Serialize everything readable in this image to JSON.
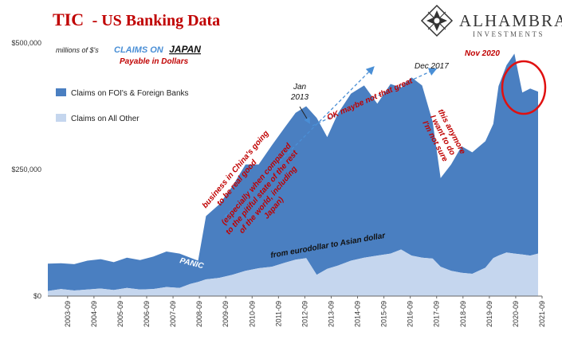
{
  "header": {
    "title_tic": "TIC",
    "title_rest": "- US Banking Data"
  },
  "logo": {
    "name": "ALHAMBRA",
    "subtitle": "INVESTMENTS",
    "icon": "star-diamond-logo-icon"
  },
  "colors": {
    "dark_series": "#4a7fc1",
    "light_series": "#c5d6ee",
    "annotation_red": "#c00000",
    "header_blue": "#4a8fd6",
    "arrow_blue": "#4a8fd6"
  },
  "chart_data": {
    "type": "area",
    "stacked": true,
    "units": "millions of $'s",
    "header_claims": "CLAIMS ON",
    "header_country": "JAPAN",
    "header_payable": "Payable in Dollars",
    "y_ticks": [
      "$0",
      "$250,000",
      "$500,000"
    ],
    "ylim": [
      0,
      500000
    ],
    "x_ticks": [
      "2003-09",
      "2004-09",
      "2005-09",
      "2006-09",
      "2007-09",
      "2008-09",
      "2009-09",
      "2010-09",
      "2011-09",
      "2012-09",
      "2013-09",
      "2014-09",
      "2015-09",
      "2016-09",
      "2017-09",
      "2018-09",
      "2019-09",
      "2020-09",
      "2021-09"
    ],
    "xlim": [
      2003.0,
      2021.75
    ],
    "legend": [
      "Claims on FOI's & Foreign Banks",
      "Claims on All Other"
    ],
    "series": [
      {
        "name": "Claims on All Other",
        "x": [
          2003.0,
          2003.5,
          2004.0,
          2004.5,
          2005.0,
          2005.5,
          2006.0,
          2006.5,
          2007.0,
          2007.5,
          2008.0,
          2008.4,
          2008.7,
          2009.0,
          2009.5,
          2010.0,
          2010.5,
          2011.0,
          2011.5,
          2012.0,
          2012.4,
          2012.8,
          2013.2,
          2013.6,
          2014.0,
          2014.5,
          2015.0,
          2015.5,
          2016.0,
          2016.4,
          2016.8,
          2017.2,
          2017.6,
          2017.9,
          2018.3,
          2018.7,
          2019.1,
          2019.6,
          2019.9,
          2020.1,
          2020.4,
          2020.7,
          2021.0,
          2021.3,
          2021.6
        ],
        "values": [
          10000,
          14000,
          11000,
          13000,
          15000,
          12000,
          16000,
          13000,
          14000,
          18000,
          16000,
          24000,
          28000,
          33000,
          36000,
          42000,
          50000,
          55000,
          58000,
          66000,
          72000,
          75000,
          42000,
          54000,
          60000,
          70000,
          76000,
          80000,
          84000,
          92000,
          80000,
          76000,
          74000,
          58000,
          50000,
          46000,
          44000,
          56000,
          75000,
          80000,
          86000,
          84000,
          82000,
          80000,
          84000
        ]
      },
      {
        "name": "Claims on FOI's & Foreign Banks",
        "x": [
          2003.0,
          2003.5,
          2004.0,
          2004.5,
          2005.0,
          2005.5,
          2006.0,
          2006.5,
          2007.0,
          2007.5,
          2008.0,
          2008.4,
          2008.7,
          2009.0,
          2009.5,
          2010.0,
          2010.5,
          2011.0,
          2011.5,
          2012.0,
          2012.4,
          2012.8,
          2013.2,
          2013.6,
          2014.0,
          2014.5,
          2015.0,
          2015.5,
          2016.0,
          2016.4,
          2016.8,
          2017.2,
          2017.6,
          2017.9,
          2018.3,
          2018.7,
          2019.1,
          2019.6,
          2019.9,
          2020.1,
          2020.4,
          2020.7,
          2021.0,
          2021.3,
          2021.6
        ],
        "values": [
          54000,
          51000,
          52000,
          57000,
          58000,
          55000,
          60000,
          58000,
          64000,
          70000,
          68000,
          52000,
          42000,
          125000,
          145000,
          175000,
          210000,
          205000,
          240000,
          268000,
          290000,
          300000,
          310000,
          260000,
          300000,
          330000,
          340000,
          300000,
          335000,
          320000,
          352000,
          340000,
          270000,
          175000,
          210000,
          250000,
          240000,
          250000,
          265000,
          335000,
          370000,
          395000,
          320000,
          330000,
          320000
        ]
      }
    ],
    "annotations": {
      "panic": "PANIC",
      "jan_2013": [
        "Jan",
        "2013"
      ],
      "dec_2017": "Dec 2017",
      "nov_2020": "Nov 2020",
      "ok_maybe": "OK maybe not that great",
      "business_china": [
        "business in China's going",
        "to be real good"
      ],
      "especially": [
        "(especially when compared",
        "to the pitiful state of the rest",
        "of the world, including",
        "Japan)"
      ],
      "not_sure": [
        "I'm not sure",
        "I want to do",
        "this anymore"
      ],
      "eurodollar": "from eurodollar to Asian dollar"
    }
  }
}
